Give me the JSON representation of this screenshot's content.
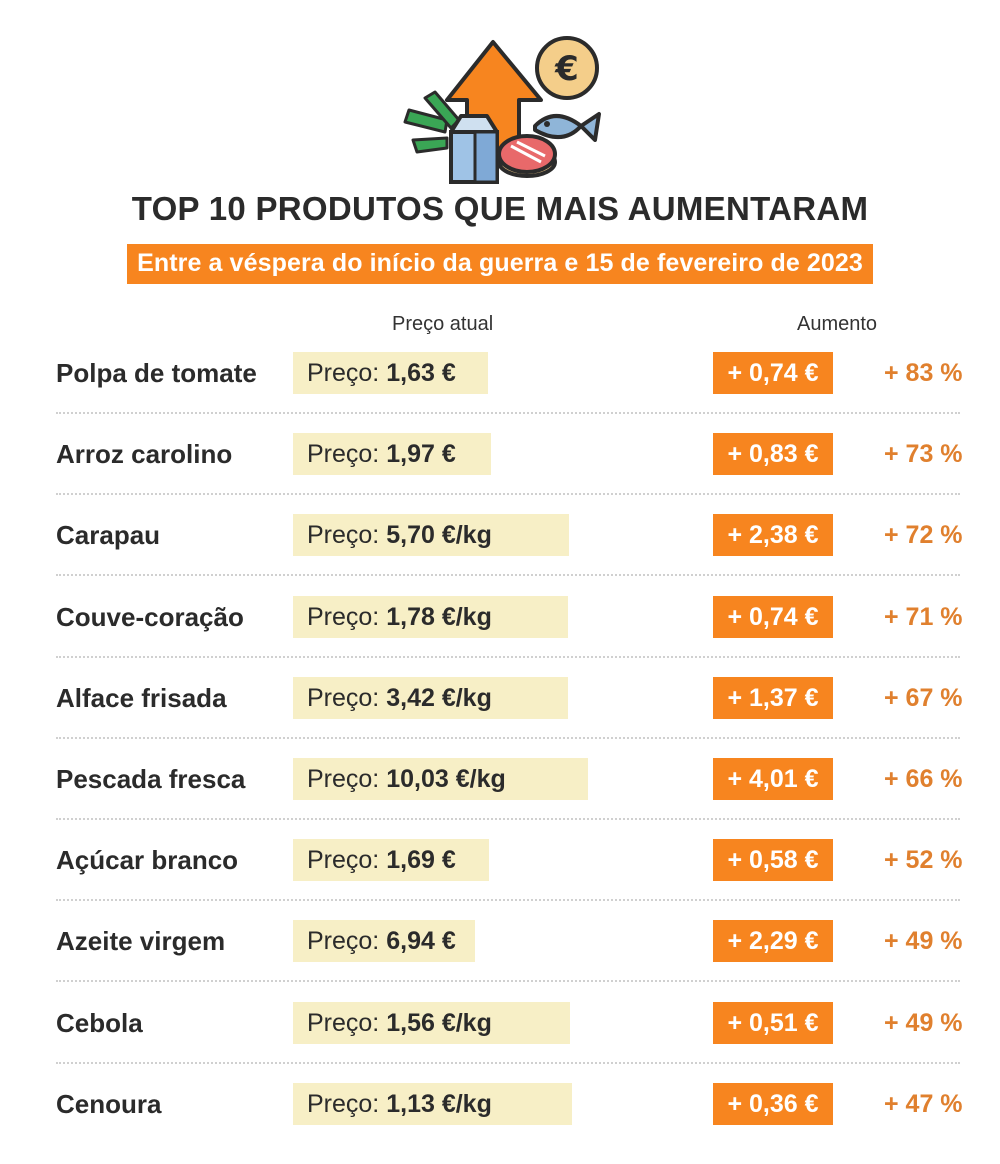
{
  "title": "TOP 10 PRODUTOS QUE MAIS AUMENTARAM",
  "subtitle": "Entre a véspera do início da guerra e 15 de fevereiro de 2023",
  "columns": {
    "price": "Preço atual",
    "increase": "Aumento"
  },
  "hero": {
    "euro_symbol": "€",
    "icons": [
      "up-arrow-icon",
      "euro-coin-icon",
      "leek-icon",
      "milk-carton-icon",
      "steak-icon",
      "fish-icon"
    ]
  },
  "colors": {
    "accent": "#f7851f",
    "price_bg": "#f7efc6",
    "pct_text": "#e0802e",
    "text": "#2b2b2b"
  },
  "chart_data": {
    "type": "table",
    "title": "TOP 10 PRODUTOS QUE MAIS AUMENTARAM",
    "subtitle": "Entre a véspera do início da guerra e 15 de fevereiro de 2023",
    "columns": [
      "Preço atual",
      "Aumento"
    ],
    "rows": [
      {
        "product": "Polpa de tomate",
        "price_label": "Preço:",
        "price": "1,63 €",
        "increase": "+ 0,74 €",
        "pct": "+ 83 %"
      },
      {
        "product": "Arroz carolino",
        "price_label": "Preço:",
        "price": "1,97 €",
        "increase": "+ 0,83 €",
        "pct": "+ 73 %"
      },
      {
        "product": "Carapau",
        "price_label": "Preço:",
        "price": "5,70 €/kg",
        "increase": "+ 2,38 €",
        "pct": "+ 72  %"
      },
      {
        "product": "Couve-coração",
        "price_label": "Preço:",
        "price": "1,78 €/kg",
        "increase": "+ 0,74 €",
        "pct": "+ 71 %"
      },
      {
        "product": "Alface frisada",
        "price_label": "Preço:",
        "price": "3,42 €/kg",
        "increase": "+ 1,37 €",
        "pct": "+ 67 %"
      },
      {
        "product": "Pescada fresca",
        "price_label": "Preço:",
        "price": "10,03 €/kg",
        "increase": "+ 4,01 €",
        "pct": "+ 66 %"
      },
      {
        "product": "Açúcar branco",
        "price_label": "Preço:",
        "price": "1,69 €",
        "increase": "+ 0,58 €",
        "pct": "+ 52 %"
      },
      {
        "product": "Azeite virgem",
        "price_label": "Preço:",
        "price": "6,94 €",
        "increase": "+ 2,29 €",
        "pct": "+ 49 %"
      },
      {
        "product": "Cebola",
        "price_label": "Preço:",
        "price": "1,56 €/kg",
        "increase": "+ 0,51 €",
        "pct": "+ 49 %"
      },
      {
        "product": "Cenoura",
        "price_label": "Preço:",
        "price": "1,13 €/kg",
        "increase": "+ 0,36 €",
        "pct": "+ 47 %"
      }
    ]
  }
}
